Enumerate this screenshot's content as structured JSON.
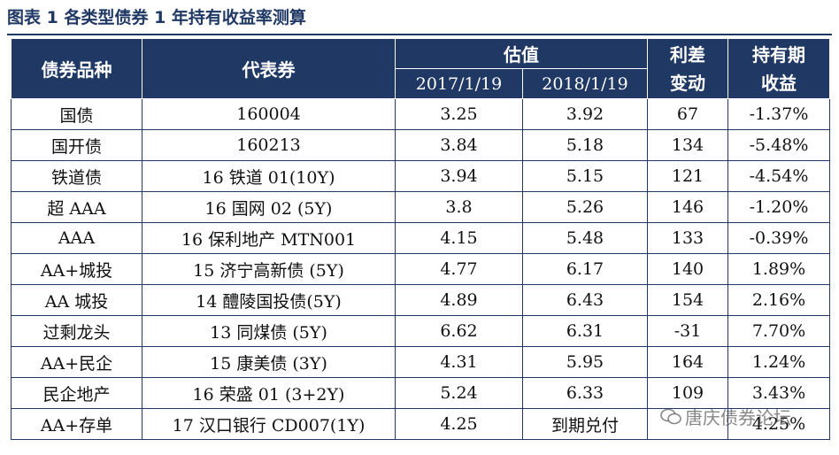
{
  "title": "图表 1 各类型债券 1 年持有收益率测算",
  "headers": {
    "type": "债券品种",
    "rep": "代表券",
    "valuation": "估值",
    "date1": "2017/1/19",
    "date2": "2018/1/19",
    "spread_line1": "利差",
    "spread_line2": "变动",
    "yield_line1": "持有期",
    "yield_line2": "收益"
  },
  "rows": [
    {
      "type": "国债",
      "rep": "160004",
      "v2017": "3.25",
      "v2018": "3.92",
      "spread": "67",
      "yield": "-1.37%"
    },
    {
      "type": "国开债",
      "rep": "160213",
      "v2017": "3.84",
      "v2018": "5.18",
      "spread": "134",
      "yield": "-5.48%"
    },
    {
      "type": "铁道债",
      "rep": "16 铁道 01(10Y)",
      "v2017": "3.94",
      "v2018": "5.15",
      "spread": "121",
      "yield": "-4.54%"
    },
    {
      "type": "超 AAA",
      "rep": "16 国网 02 (5Y)",
      "v2017": "3.8",
      "v2018": "5.26",
      "spread": "146",
      "yield": "-1.20%"
    },
    {
      "type": "AAA",
      "rep": "16 保利地产 MTN001",
      "v2017": "4.15",
      "v2018": "5.48",
      "spread": "133",
      "yield": "-0.39%"
    },
    {
      "type": "AA+城投",
      "rep": "15 济宁高新债 (5Y)",
      "v2017": "4.77",
      "v2018": "6.17",
      "spread": "140",
      "yield": "1.89%"
    },
    {
      "type": "AA 城投",
      "rep": "14 醴陵国投债(5Y)",
      "v2017": "4.89",
      "v2018": "6.43",
      "spread": "154",
      "yield": "2.16%"
    },
    {
      "type": "过剩龙头",
      "rep": "13 同煤债 (5Y)",
      "v2017": "6.62",
      "v2018": "6.31",
      "spread": "-31",
      "yield": "7.70%"
    },
    {
      "type": "AA+民企",
      "rep": "15 康美债 (3Y)",
      "v2017": "4.31",
      "v2018": "5.95",
      "spread": "164",
      "yield": "1.24%"
    },
    {
      "type": "民企地产",
      "rep": "16 荣盛 01 (3+2Y)",
      "v2017": "5.24",
      "v2018": "6.33",
      "spread": "109",
      "yield": "3.43%"
    },
    {
      "type": "AA+存单",
      "rep": "17 汉口银行 CD007(1Y)",
      "v2017": "4.25",
      "v2018": "到期兑付",
      "spread": "",
      "yield": "4.25%"
    }
  ],
  "watermark": {
    "text": "唐庆债券论坛",
    "icon": "wechat-icon"
  },
  "colors": {
    "header_bg": "#1f3864",
    "header_text": "#ffffff",
    "border": "#1f3864"
  }
}
